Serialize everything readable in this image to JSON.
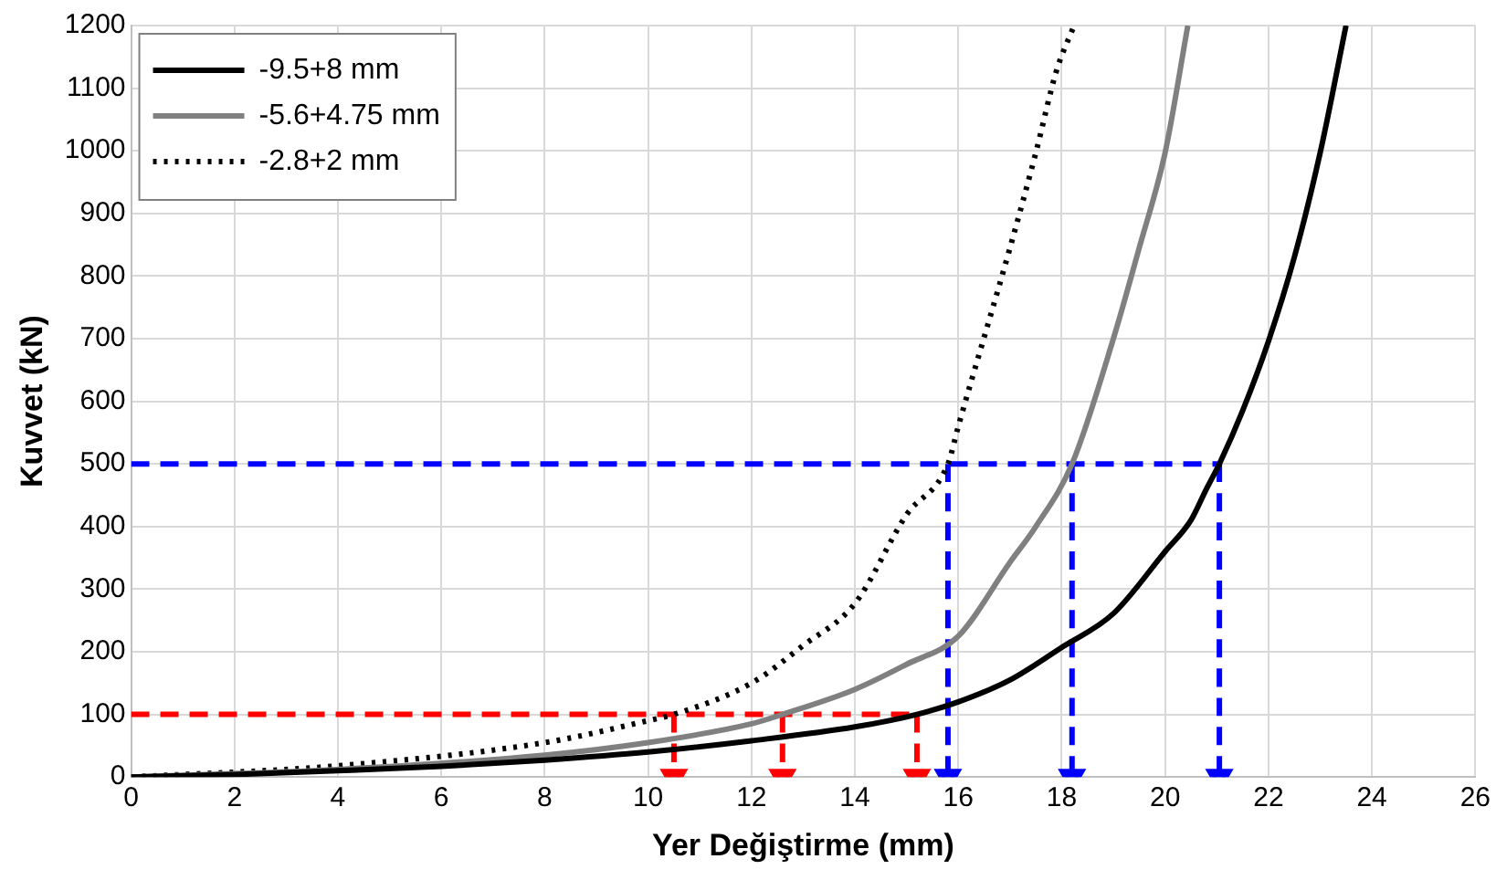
{
  "chart_data": {
    "type": "line",
    "xlabel": "Yer Değiştirme (mm)",
    "ylabel": "Kuvvet (kN)",
    "xlim": [
      0,
      26
    ],
    "xticks": [
      0,
      2,
      4,
      6,
      8,
      10,
      12,
      14,
      16,
      18,
      20,
      22,
      24,
      26
    ],
    "ylim": [
      0,
      1200
    ],
    "yticks": [
      0,
      100,
      200,
      300,
      400,
      500,
      600,
      700,
      800,
      900,
      1000,
      1100,
      1200
    ],
    "grid": true,
    "legend": "top left",
    "marker": "none",
    "series": [
      {
        "name": "-9.5+8 mm",
        "color": "#000000",
        "line_style": "solid",
        "x": [
          0,
          2,
          4,
          6,
          8,
          10,
          12,
          14,
          15.2,
          16,
          17,
          18,
          19,
          20,
          20.5,
          20.8,
          21.05,
          21.5,
          22,
          22.5,
          23,
          23.5
        ],
        "values": [
          0,
          4,
          10,
          17,
          27,
          40,
          58,
          80,
          100,
          120,
          155,
          207,
          261,
          360,
          410,
          460,
          500,
          585,
          696,
          830,
          997,
          1200
        ]
      },
      {
        "name": "-5.6+4.75 mm",
        "color": "#808080",
        "line_style": "solid",
        "x": [
          0,
          4,
          8,
          10,
          12,
          12.6,
          14,
          15,
          16,
          17,
          17.5,
          18.2,
          19,
          19.5,
          20,
          20.44
        ],
        "values": [
          0,
          12,
          35,
          55,
          85,
          100,
          140,
          180,
          225,
          343,
          400,
          500,
          700,
          845,
          997,
          1200
        ]
      },
      {
        "name": "-2.8+2 mm",
        "color": "#000000",
        "line_style": "dotted",
        "x": [
          0,
          4,
          8,
          10,
          10.5,
          12,
          13,
          14,
          15,
          15.8,
          16,
          17,
          17.5,
          17.9,
          18.24
        ],
        "values": [
          0,
          18,
          55,
          90,
          100,
          150,
          210,
          277,
          419,
          500,
          560,
          845,
          997,
          1128,
          1200
        ]
      },
      {
        "color": "#ff0000",
        "line_style": "dashed",
        "x": [
          0,
          15.2
        ],
        "values": [
          100,
          100
        ]
      },
      {
        "color": "#ff0000",
        "line_style": "dashed",
        "marker": "triangle",
        "x": [
          10.5,
          10.5
        ],
        "values": [
          100,
          0
        ]
      },
      {
        "color": "#ff0000",
        "line_style": "dashed",
        "marker": "triangle",
        "x": [
          12.6,
          12.6
        ],
        "values": [
          100,
          0
        ]
      },
      {
        "color": "#ff0000",
        "line_style": "dashed",
        "marker": "triangle",
        "x": [
          15.2,
          15.2
        ],
        "values": [
          100,
          0
        ]
      },
      {
        "color": "#0000ff",
        "line_style": "dashed",
        "x": [
          0,
          21.05
        ],
        "values": [
          500,
          500
        ]
      },
      {
        "color": "#0000ff",
        "line_style": "dashed",
        "marker": "triangle",
        "x": [
          15.8,
          15.8
        ],
        "values": [
          500,
          0
        ]
      },
      {
        "color": "#0000ff",
        "line_style": "dashed",
        "marker": "triangle",
        "x": [
          18.2,
          18.2
        ],
        "values": [
          500,
          0
        ]
      },
      {
        "color": "#0000ff",
        "line_style": "dashed",
        "marker": "triangle",
        "x": [
          21.05,
          21.05
        ],
        "values": [
          500,
          0
        ]
      }
    ]
  }
}
